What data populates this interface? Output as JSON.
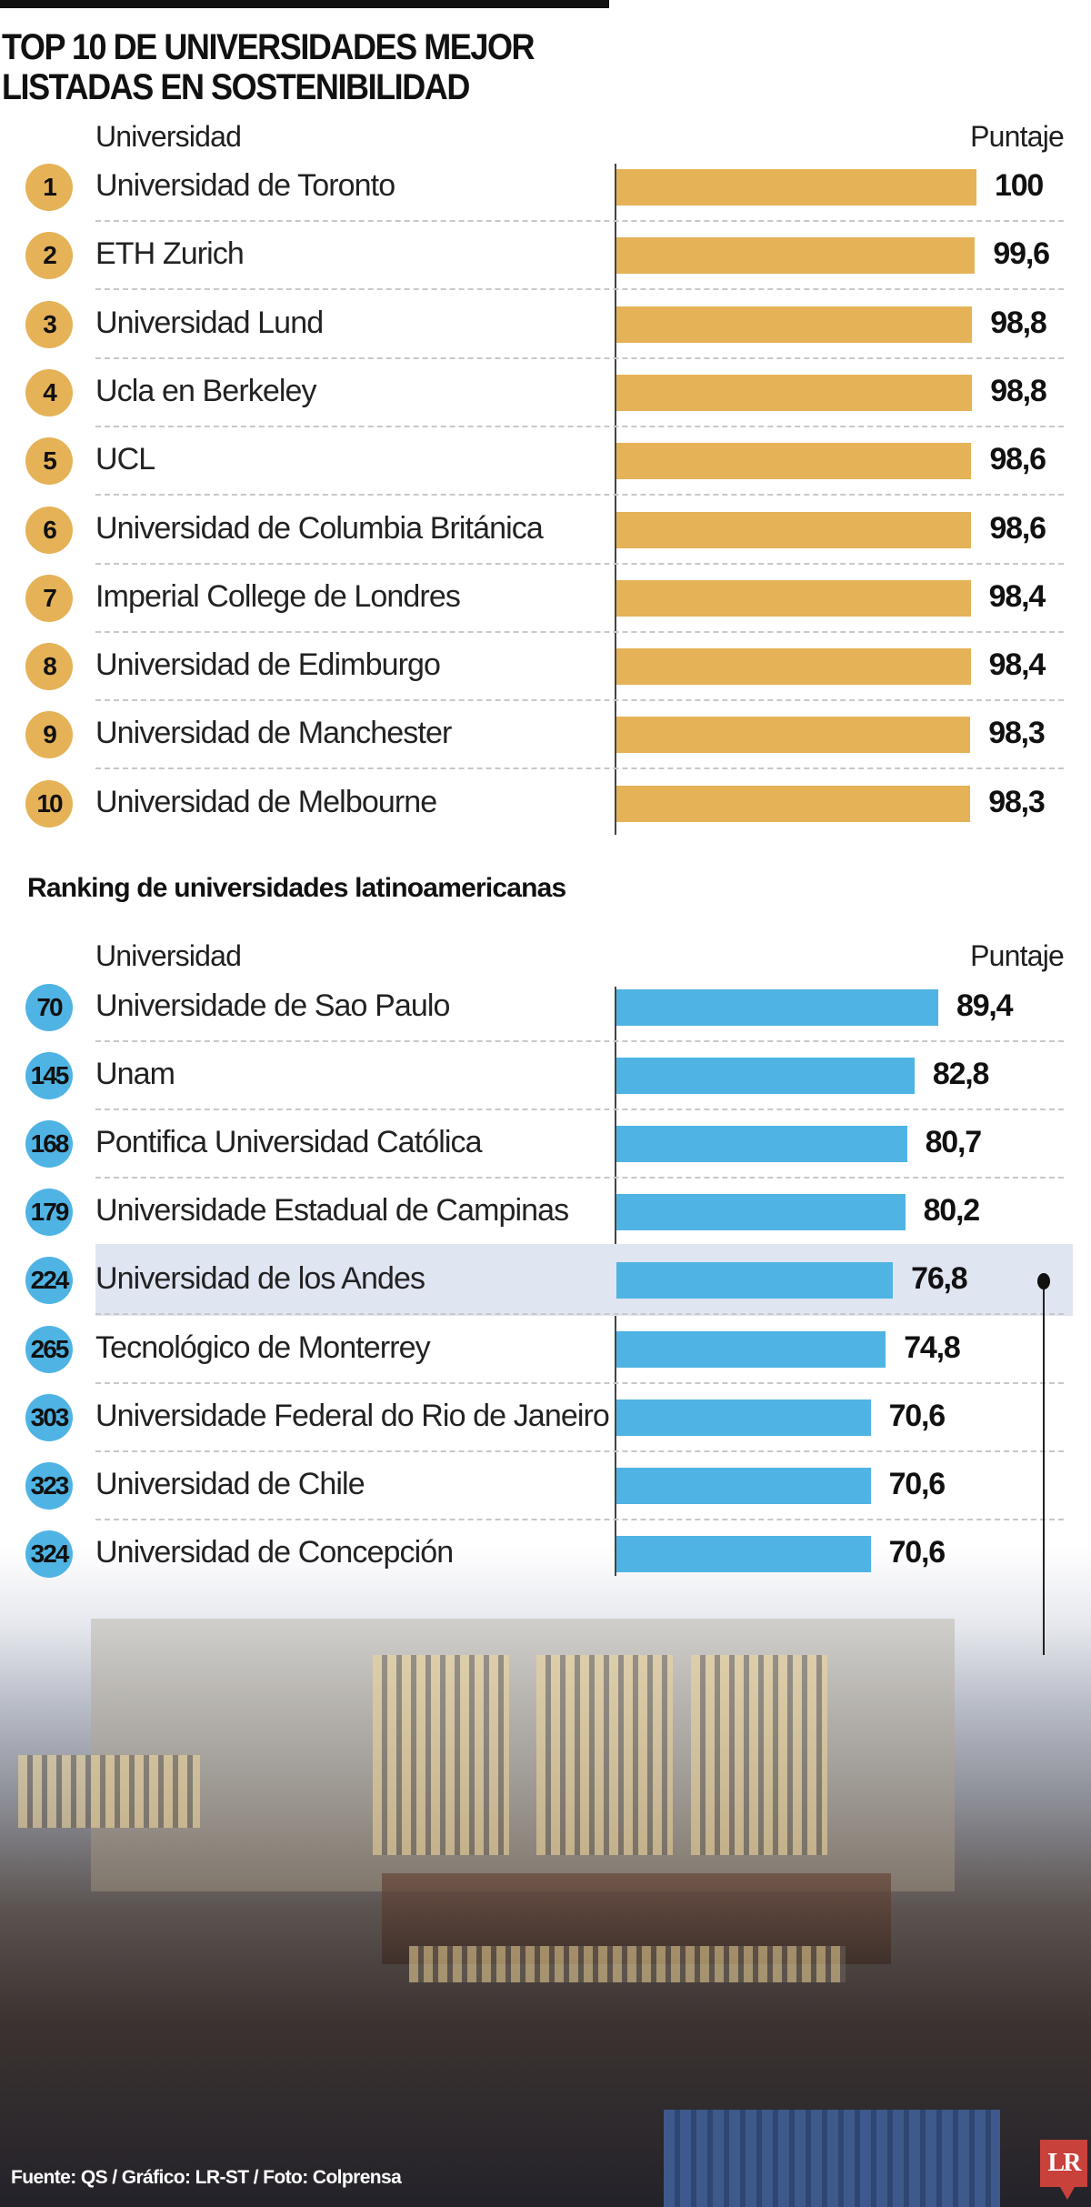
{
  "chart_data": [
    {
      "type": "bar",
      "orientation": "horizontal",
      "title": "TOP 10 DE UNIVERSIDADES MEJOR LISTADAS EN SOSTENIBILIDAD",
      "title_lines": [
        "TOP 10 DE UNIVERSIDADES MEJOR",
        "LISTADAS EN SOSTENIBILIDAD"
      ],
      "column_label": "Universidad",
      "value_label": "Puntaje",
      "color": "#e5b257",
      "xlim": [
        0,
        100
      ],
      "ranks": [
        "1",
        "2",
        "3",
        "4",
        "5",
        "6",
        "7",
        "8",
        "9",
        "10"
      ],
      "categories": [
        "Universidad de Toronto",
        "ETH Zurich",
        "Universidad Lund",
        "Ucla en Berkeley",
        "UCL",
        "Universidad de Columbia Británica",
        "Imperial College de Londres",
        "Universidad de Edimburgo",
        "Universidad de Manchester",
        "Universidad de Melbourne"
      ],
      "values": [
        100,
        99.6,
        98.8,
        98.8,
        98.6,
        98.6,
        98.4,
        98.4,
        98.3,
        98.3
      ],
      "labels": [
        "100",
        "99,6",
        "98,8",
        "98,8",
        "98,6",
        "98,6",
        "98,4",
        "98,4",
        "98,3",
        "98,3"
      ]
    },
    {
      "type": "bar",
      "orientation": "horizontal",
      "title": "Ranking de universidades latinoamericanas",
      "column_label": "Universidad",
      "value_label": "Puntaje",
      "color": "#4fb4e4",
      "highlight_color": "#e0e5f2",
      "highlight_index": 4,
      "xlim": [
        0,
        100
      ],
      "ranks": [
        "70",
        "145",
        "168",
        "179",
        "224",
        "265",
        "303",
        "323",
        "324"
      ],
      "categories": [
        "Universidade de Sao Paulo",
        "Unam",
        "Pontifica Universidad Católica",
        "Universidade Estadual de Campinas",
        "Universidad de los Andes",
        "Tecnológico de Monterrey",
        "Universidade Federal do Rio de Janeiro",
        "Universidad de Chile",
        "Universidad de Concepción"
      ],
      "values": [
        89.4,
        82.8,
        80.7,
        80.2,
        76.8,
        74.8,
        70.6,
        70.6,
        70.6
      ],
      "labels": [
        "89,4",
        "82,8",
        "80,7",
        "80,2",
        "76,8",
        "74,8",
        "70,6",
        "70,6",
        "70,6"
      ]
    }
  ],
  "footer": "Fuente: QS / Gráfico: LR-ST / Foto: Colprensa",
  "logo": "LR"
}
